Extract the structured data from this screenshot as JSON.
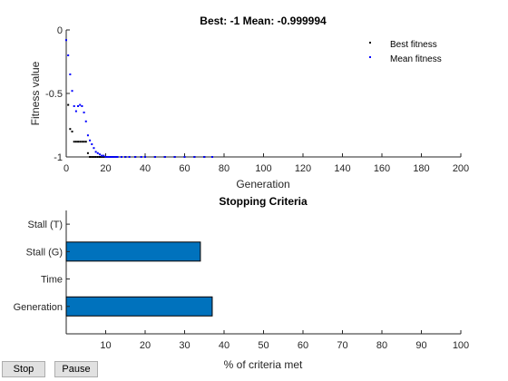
{
  "fitness_plot": {
    "title": "Best: -1 Mean: -0.999994",
    "xlabel": "Generation",
    "ylabel": "Fitness value",
    "legend": {
      "placement": "top-right",
      "entries": [
        {
          "label": "Best fitness",
          "color": "#000000"
        },
        {
          "label": "Mean fitness",
          "color": "#0000ff"
        }
      ]
    }
  },
  "criteria_plot": {
    "title": "Stopping Criteria",
    "xlabel": "% of criteria met"
  },
  "controls": {
    "stop_label": "Stop",
    "pause_label": "Pause"
  },
  "chart_data": [
    {
      "type": "scatter",
      "title": "Best: -1 Mean: -0.999994",
      "xlabel": "Generation",
      "ylabel": "Fitness value",
      "xlim": [
        0,
        200
      ],
      "ylim": [
        -1,
        0
      ],
      "xticks": [
        0,
        20,
        40,
        60,
        80,
        100,
        120,
        140,
        160,
        180,
        200
      ],
      "yticks": [
        -1,
        -0.5,
        0
      ],
      "ytick_labels": [
        "-1",
        "-0.5",
        "0"
      ],
      "grid": false,
      "legend": "top-right",
      "series": [
        {
          "name": "Best fitness",
          "color": "#000000",
          "x": [
            1,
            2,
            3,
            4,
            5,
            6,
            7,
            8,
            9,
            10,
            11,
            12,
            13,
            14,
            15,
            16,
            17,
            18,
            19,
            20,
            21,
            22,
            23,
            24,
            25,
            30,
            35,
            40,
            45,
            50,
            55,
            60,
            65,
            70,
            74
          ],
          "y": [
            -0.59,
            -0.78,
            -0.8,
            -0.88,
            -0.88,
            -0.88,
            -0.88,
            -0.88,
            -0.88,
            -0.88,
            -0.97,
            -1,
            -1,
            -1,
            -1,
            -1,
            -1,
            -1,
            -1,
            -1,
            -1,
            -1,
            -1,
            -1,
            -1,
            -1,
            -1,
            -1,
            -1,
            -1,
            -1,
            -1,
            -1,
            -1,
            -1
          ]
        },
        {
          "name": "Mean fitness",
          "color": "#0000ff",
          "x": [
            0,
            1,
            2,
            3,
            4,
            5,
            6,
            7,
            8,
            9,
            10,
            11,
            12,
            13,
            14,
            15,
            16,
            17,
            18,
            19,
            20,
            21,
            22,
            23,
            24,
            25,
            26,
            28,
            30,
            32,
            35,
            38,
            40,
            45,
            50,
            55,
            60,
            65,
            70,
            74
          ],
          "y": [
            -0.08,
            -0.2,
            -0.35,
            -0.48,
            -0.6,
            -0.64,
            -0.6,
            -0.59,
            -0.6,
            -0.65,
            -0.72,
            -0.83,
            -0.87,
            -0.9,
            -0.93,
            -0.96,
            -0.97,
            -0.98,
            -0.99,
            -0.99,
            -1,
            -1,
            -1,
            -1,
            -1,
            -1,
            -1,
            -1,
            -1,
            -1,
            -1,
            -1,
            -1,
            -1,
            -1,
            -1,
            -1,
            -1,
            -1,
            -1
          ]
        }
      ]
    },
    {
      "type": "bar",
      "orientation": "horizontal",
      "title": "Stopping Criteria",
      "xlabel": "% of criteria met",
      "categories": [
        "Generation",
        "Time",
        "Stall (G)",
        "Stall (T)"
      ],
      "values": [
        37,
        0,
        34,
        0
      ],
      "xlim": [
        0,
        100
      ],
      "xticks": [
        10,
        20,
        30,
        40,
        50,
        60,
        70,
        80,
        90,
        100
      ],
      "bar_color": "#0072bd",
      "grid": false
    }
  ]
}
